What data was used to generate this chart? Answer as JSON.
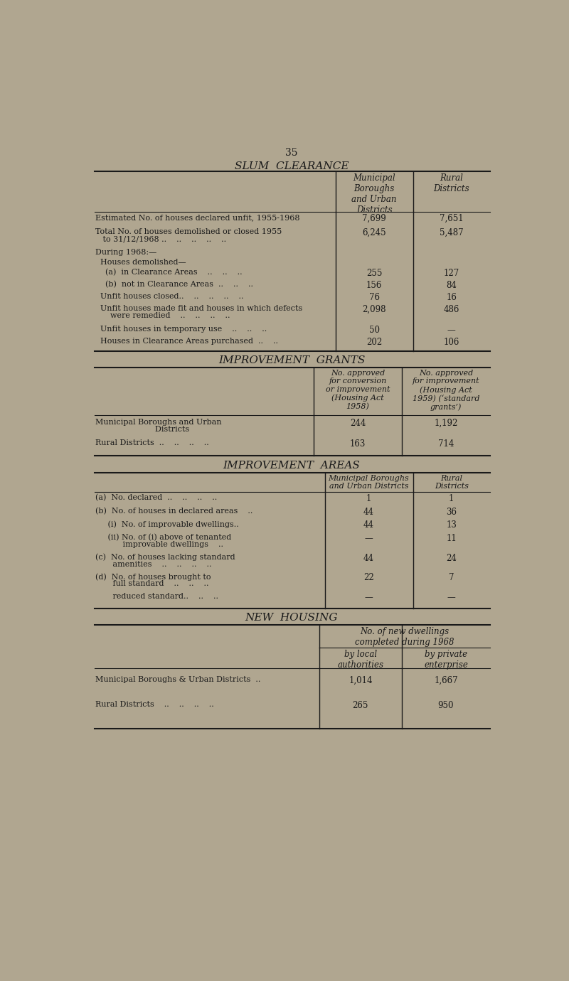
{
  "bg_color": "#b0a690",
  "text_color": "#1a1a1a",
  "page_number": "35",
  "section1_title": "SLUM  CLEARANCE",
  "section1_col1_header": "Municipal\nBoroughs\nand Urban\nDistricts",
  "section1_col2_header": "Rural\nDistricts",
  "section1_rows": [
    [
      "Estimated No. of houses declared unfit, 1955-1968",
      "7,699",
      "7,651"
    ],
    [
      "Total No. of houses demolished or closed 1955\n   to 31/12/1968 ..    ..    ..    ..    ..",
      "6,245",
      "5,487"
    ],
    [
      "During 1968:—",
      "",
      ""
    ],
    [
      "  Houses demolished—",
      "",
      ""
    ],
    [
      "    (a)  in Clearance Areas    ..    ..    ..",
      "255",
      "127"
    ],
    [
      "    (b)  not in Clearance Areas  ..    ..    ..",
      "156",
      "84"
    ],
    [
      "  Unfit houses closed..    ..    ..    ..    ..",
      "76",
      "16"
    ],
    [
      "  Unfit houses made fit and houses in which defects\n      were remedied    ..    ..    ..    ..",
      "2,098",
      "486"
    ],
    [
      "  Unfit houses in temporary use    ..    ..    ..",
      "50",
      "—"
    ],
    [
      "  Houses in Clearance Areas purchased  ..    ..",
      "202",
      "106"
    ]
  ],
  "section2_title": "IMPROVEMENT  GRANTS",
  "section2_col1_header": "No. approved\nfor conversion\nor improvement\n(Housing Act\n1958)",
  "section2_col2_header": "No. approved\nfor improvement\n(Housing Act\n1959) (‘standard\ngrants’)",
  "section2_rows": [
    [
      "Municipal Boroughs and Urban\n                        Districts",
      "244",
      "1,192"
    ],
    [
      "Rural Districts  ..    ..    ..    ..",
      "163",
      "714"
    ]
  ],
  "section3_title": "IMPROVEMENT  AREAS",
  "section3_col1_header": "Municipal Boroughs\nand Urban Districts",
  "section3_col2_header": "Rural\nDistricts",
  "section3_rows": [
    [
      "(a)  No. declared  ..    ..    ..    ..",
      "1",
      "1"
    ],
    [
      "(b)  No. of houses in declared areas    ..",
      "44",
      "36"
    ],
    [
      "     (i)  No. of improvable dwellings..",
      "44",
      "13"
    ],
    [
      "     (ii) No. of (i) above of tenanted\n           improvable dwellings    ..",
      "—",
      "11"
    ],
    [
      "(c)  No. of houses lacking standard\n       amenities    ..    ..    ..    ..",
      "44",
      "24"
    ],
    [
      "(d)  No. of houses brought to\n       full standard    ..    ..    ..",
      "22",
      "7"
    ],
    [
      "       reduced standard..    ..    ..",
      "—",
      "—"
    ]
  ],
  "section4_title": "NEW  HOUSING",
  "section4_header_span": "No. of new dwellings\ncompleted during 1968",
  "section4_col1_header": "by local\nauthorities",
  "section4_col2_header": "by private\nenterprise",
  "section4_rows": [
    [
      "Municipal Boroughs & Urban Districts  ..",
      "1,014",
      "1,667"
    ],
    [
      "Rural Districts    ..    ..    ..    ..",
      "265",
      "950"
    ]
  ]
}
